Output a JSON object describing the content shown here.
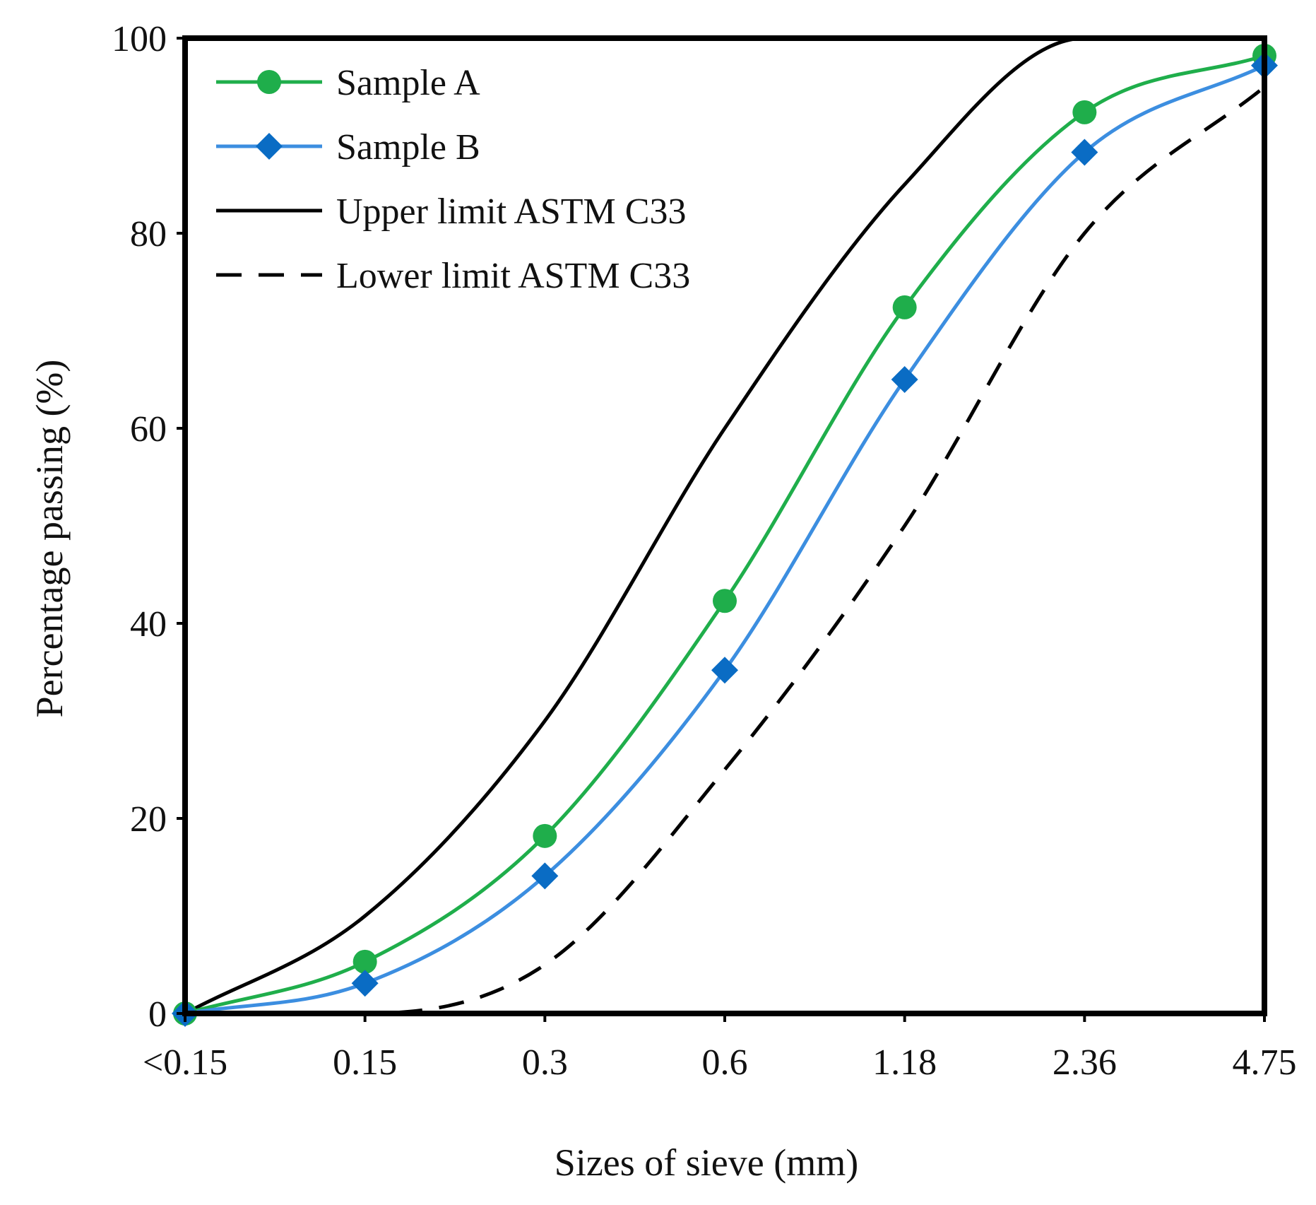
{
  "chart_data": {
    "type": "line",
    "title": "",
    "xlabel": "Sizes of sieve (mm)",
    "ylabel": "Percentage passing (%)",
    "categories": [
      "<0.15",
      "0.15",
      "0.3",
      "0.6",
      "1.18",
      "2.36",
      "4.75"
    ],
    "ylim": [
      0,
      100
    ],
    "yticks": [
      "0",
      "20",
      "40",
      "60",
      "80",
      "100"
    ],
    "legend_position": "top-left",
    "series": [
      {
        "name": "Sample A",
        "values": [
          0,
          5.3,
          18.2,
          42.3,
          72.4,
          92.4,
          98.2
        ],
        "color": "#1fae4b",
        "marker": "circle",
        "dash": "solid"
      },
      {
        "name": "Sample B",
        "values": [
          0,
          3.1,
          14.1,
          35.2,
          65.0,
          88.3,
          97.2
        ],
        "color": "#3c8ee0",
        "marker": "diamond",
        "dash": "solid"
      },
      {
        "name": "Upper limit ASTM C33",
        "values": [
          0,
          10,
          30,
          60,
          85,
          100,
          100
        ],
        "color": "#000000",
        "marker": "none",
        "dash": "solid"
      },
      {
        "name": "Lower limit ASTM C33",
        "values": [
          0,
          0,
          5,
          25,
          50,
          80,
          95
        ],
        "color": "#000000",
        "marker": "none",
        "dash": "dashed"
      }
    ]
  },
  "colors": {
    "marker_a": "#1fae4b",
    "marker_b": "#0a6cc4"
  }
}
